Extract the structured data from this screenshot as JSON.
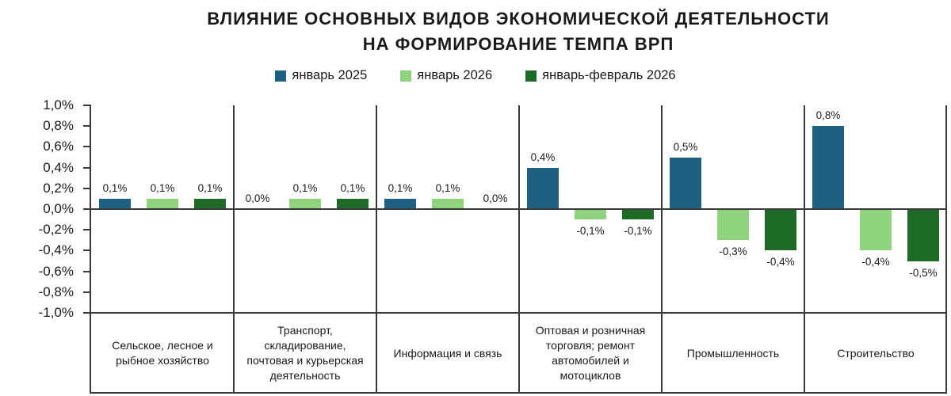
{
  "title": {
    "line1": "ВЛИЯНИЕ ОСНОВНЫХ ВИДОВ ЭКОНОМИЧЕСКОЙ ДЕЯТЕЛЬНОСТИ",
    "line2": "НА ФОРМИРОВАНИЕ ТЕМПА ВРП"
  },
  "legend": [
    {
      "label": "январь 2025",
      "color": "#1E6082"
    },
    {
      "label": "январь 2026",
      "color": "#8FD37F"
    },
    {
      "label": "январь-февраль 2026",
      "color": "#1E6B28"
    }
  ],
  "chart_data": {
    "type": "bar",
    "title": "ВЛИЯНИЕ ОСНОВНЫХ ВИДОВ ЭКОНОМИЧЕСКОЙ ДЕЯТЕЛЬНОСТИ НА ФОРМИРОВАНИЕ ТЕМПА ВРП",
    "categories": [
      "Сельское, лесное и рыбное хозяйство",
      "Транспорт, складирование, почтовая и курьерская деятельность",
      "Информация и связь",
      "Оптовая и розничная торговля; ремонт автомобилей и мотоциклов",
      "Промышленность",
      "Строительство"
    ],
    "series": [
      {
        "name": "январь 2025",
        "color": "#1E6082",
        "values": [
          0.1,
          0.0,
          0.1,
          0.4,
          0.5,
          0.8
        ],
        "labels": [
          "0,1%",
          "0,0%",
          "0,1%",
          "0,4%",
          "0,5%",
          "0,8%"
        ]
      },
      {
        "name": "январь 2026",
        "color": "#8FD37F",
        "values": [
          0.1,
          0.1,
          0.1,
          -0.1,
          -0.3,
          -0.4
        ],
        "labels": [
          "0,1%",
          "0,1%",
          "0,1%",
          "-0,1%",
          "-0,3%",
          "-0,4%"
        ]
      },
      {
        "name": "январь-февраль 2026",
        "color": "#1E6B28",
        "values": [
          0.1,
          0.1,
          0.0,
          -0.1,
          -0.4,
          -0.5
        ],
        "labels": [
          "0,1%",
          "0,1%",
          "0,0%",
          "-0,1%",
          "-0,4%",
          "-0,5%"
        ]
      }
    ],
    "ylabel": "",
    "xlabel": "",
    "ylim": [
      -1.0,
      1.0
    ],
    "ytick_step": 0.2,
    "ytick_labels": [
      "1,0%",
      "0,8%",
      "0,6%",
      "0,4%",
      "0,2%",
      "0,0%",
      "-0,2%",
      "-0,4%",
      "-0,6%",
      "-0,8%",
      "-1,0%"
    ],
    "grid": "vertical-group-separators",
    "legend_position": "top"
  }
}
